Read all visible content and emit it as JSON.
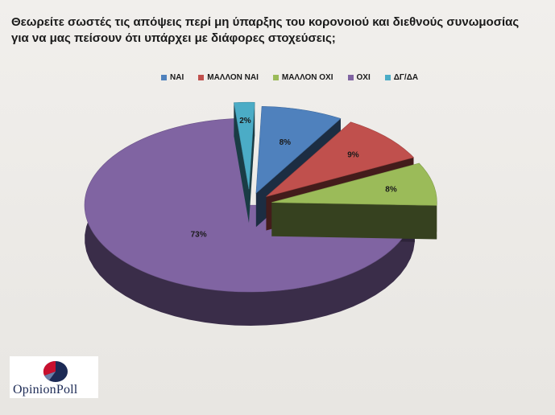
{
  "title": "Θεωρείτε σωστές τις απόψεις περί μη ύπαρξης του κορονοιού και διεθνούς συνωμοσίας για να μας πείσουν ότι υπάρχει με διάφορες στοχεύσεις;",
  "logo": {
    "text": "OpinionPoll"
  },
  "chart_data": {
    "type": "pie",
    "title": "Θεωρείτε σωστές τις απόψεις περί μη ύπαρξης του κορονοιού και διεθνούς συνωμοσίας για να μας πείσουν ότι υπάρχει με διάφορες στοχεύσεις;",
    "style": "3d-exploded",
    "legend_position": "top",
    "categories": [
      "ΝΑΙ",
      "ΜΑΛΛΟΝ ΝΑΙ",
      "ΜΑΛΛΟΝ ΟΧΙ",
      "ΟΧΙ",
      "ΔΓ/ΔΑ"
    ],
    "values": [
      8,
      9,
      8,
      73,
      2
    ],
    "labels": [
      "8%",
      "9%",
      "8%",
      "73%",
      "2%"
    ],
    "colors": [
      "#4f81bd",
      "#c0504d",
      "#9bbb59",
      "#8064a2",
      "#4bacc6"
    ]
  }
}
